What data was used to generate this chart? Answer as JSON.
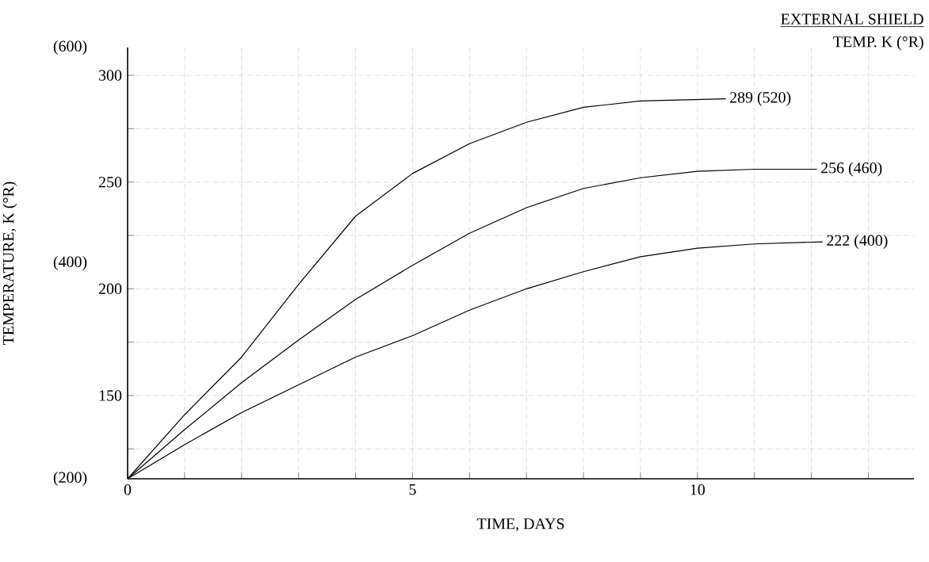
{
  "chart_data": {
    "type": "line",
    "xlabel": "TIME, DAYS",
    "y2label": "TEMPERATURE,  K (°R)",
    "xlim": [
      0,
      13.8
    ],
    "ylim": [
      111,
      313
    ],
    "y2lim": [
      200,
      600
    ],
    "xticks": [
      0,
      {
        "value": 1,
        "label": null
      },
      {
        "value": 2,
        "label": null
      },
      {
        "value": 3,
        "label": null
      },
      {
        "value": 4,
        "label": null
      },
      5,
      {
        "value": 6,
        "label": null
      },
      {
        "value": 7,
        "label": null
      },
      {
        "value": 8,
        "label": null
      },
      {
        "value": 9,
        "label": null
      },
      10,
      {
        "value": 11,
        "label": null
      },
      {
        "value": 12,
        "label": null
      },
      {
        "value": 13,
        "label": null
      }
    ],
    "yticks": [
      {
        "value": 125,
        "label": null
      },
      150,
      {
        "value": 175,
        "label": null
      },
      200,
      {
        "value": 225,
        "label": null
      },
      250,
      {
        "value": 275,
        "label": null
      },
      300
    ],
    "y2ticks": [
      {
        "value": 200,
        "label": "(200)"
      },
      {
        "value": 400,
        "label": "(400)"
      },
      {
        "value": 600,
        "label": "(600)"
      }
    ],
    "grid": true,
    "marker": "none",
    "line_style": "solid",
    "series": [
      {
        "color": "#000000",
        "x": [
          0,
          1,
          2,
          3,
          4,
          5,
          6,
          7,
          8,
          9,
          10.5
        ],
        "values": [
          111,
          141,
          168,
          202,
          234,
          254,
          268,
          278,
          285,
          288,
          289
        ]
      },
      {
        "color": "#000000",
        "x": [
          0,
          1,
          2,
          3,
          4,
          5,
          6,
          7,
          8,
          9,
          10,
          11,
          12.1
        ],
        "values": [
          111,
          134,
          156,
          176,
          195,
          211,
          226,
          238,
          247,
          252,
          255,
          256,
          256
        ]
      },
      {
        "color": "#000000",
        "x": [
          0,
          1,
          2,
          3,
          4,
          5,
          6,
          7,
          8,
          9,
          10,
          11,
          12.2
        ],
        "values": [
          111,
          127,
          142,
          155,
          168,
          178,
          190,
          200,
          208,
          215,
          219,
          221,
          222
        ]
      }
    ],
    "annotations": [
      "EXTERNAL SHIELD",
      "TEMP.  K (°R)",
      {
        "text": "289  (520)",
        "x": 10.5,
        "y": 289
      },
      {
        "text": "256  (460)",
        "x": 12.1,
        "y": 256
      },
      {
        "text": "222 (400)",
        "x": 12.2,
        "y": 222
      }
    ]
  }
}
